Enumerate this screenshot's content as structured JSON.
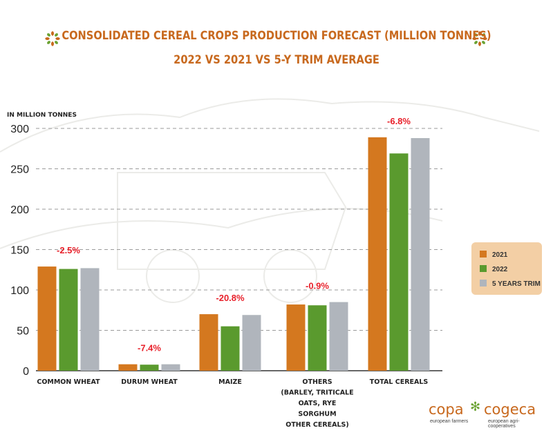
{
  "header": {
    "title_line1": "CONSOLIDATED CEREAL CROPS PRODUCTION FORECAST (MILLION TONNES)",
    "title_line2": "2022 VS 2021 VS 5-Y TRIM AVERAGE"
  },
  "chart_data": {
    "type": "bar",
    "ylabel": "IN MILLION TONNES",
    "ylim": [
      0,
      300
    ],
    "yticks": [
      0,
      50,
      100,
      150,
      200,
      250,
      300
    ],
    "grid": true,
    "legend_position": "right",
    "categories": [
      [
        "COMMON WHEAT"
      ],
      [
        "DURUM WHEAT"
      ],
      [
        "MAIZE"
      ],
      [
        "OTHERS",
        "(BARLEY, TRITICALE",
        "OATS, RYE",
        "SORGHUM",
        "OTHER CEREALS)"
      ],
      [
        "TOTAL CEREALS"
      ]
    ],
    "series": [
      {
        "name": "2021",
        "color": "#d4781f",
        "values": [
          129,
          8,
          70,
          82,
          289
        ]
      },
      {
        "name": "2022",
        "color": "#5a9a2e",
        "values": [
          126,
          7.5,
          55,
          81,
          269
        ]
      },
      {
        "name": "5 YEARS TRIM",
        "color": "#b0b5bc",
        "values": [
          127,
          8,
          69,
          85,
          288
        ]
      }
    ],
    "annotations": [
      "-2.5%",
      "-7.4%",
      "-20.8%",
      "-0.9%",
      "-6.8%"
    ],
    "annotation_color": "#e8202a"
  },
  "logo": {
    "left_word": "copa",
    "right_word": "cogeca",
    "left_sub": "european farmers",
    "right_sub": "european agri-cooperatives"
  }
}
